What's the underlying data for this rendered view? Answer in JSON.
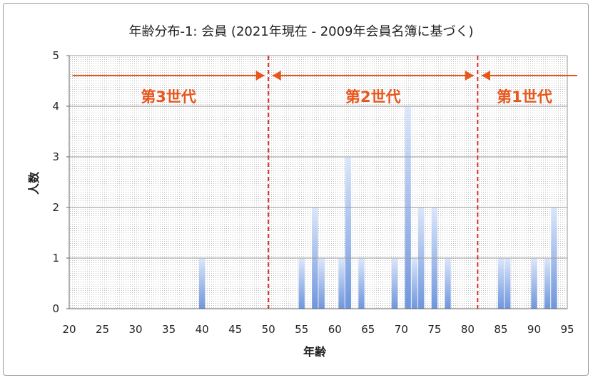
{
  "chart_data": {
    "type": "bar",
    "title": "年齢分布-1:  会員 (2021年現在   - 2009年会員名簿に基づく)",
    "xlabel": "年齢",
    "ylabel": "人数",
    "xlim": [
      20,
      95
    ],
    "ylim": [
      0,
      5
    ],
    "xticks": [
      20,
      25,
      30,
      35,
      40,
      45,
      50,
      55,
      60,
      65,
      70,
      75,
      80,
      85,
      90,
      95
    ],
    "yticks": [
      0,
      1,
      2,
      3,
      4,
      5
    ],
    "grid": true,
    "bar_color": "#6f96dc",
    "x": [
      40,
      55,
      57,
      58,
      61,
      62,
      64,
      69,
      71,
      72,
      73,
      75,
      77,
      85,
      86,
      90,
      92,
      93
    ],
    "values": [
      1,
      1,
      2,
      1,
      1,
      3,
      1,
      1,
      4,
      1,
      2,
      2,
      1,
      1,
      1,
      1,
      1,
      2
    ],
    "dividers": [
      50,
      81.5
    ],
    "divider_color": "#d9302a",
    "arrow_color": "#e8561c",
    "generations": [
      {
        "label": "第3世代",
        "from": 20.5,
        "to": 49.4
      },
      {
        "label": "第2世代",
        "from": 50.6,
        "to": 80.9
      },
      {
        "label": "第1世代",
        "from": 82.1,
        "to": 96.5
      }
    ]
  }
}
